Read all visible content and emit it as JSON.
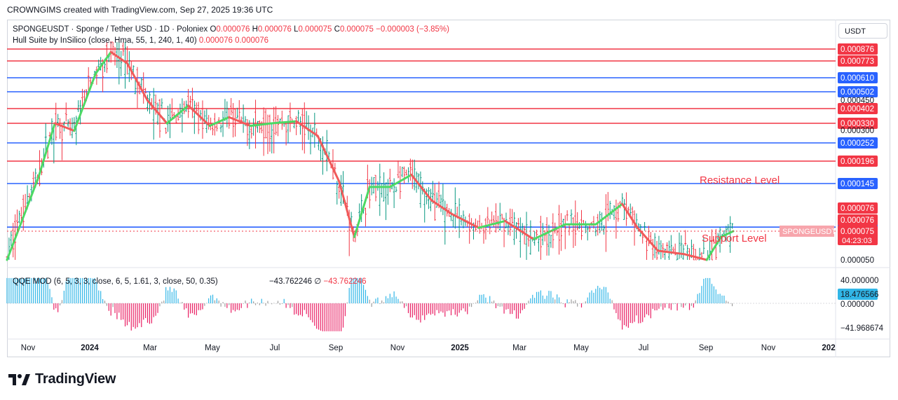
{
  "header": {
    "credit": "CROWNGIMS created with TradingView.com, Sep 27, 2025 19:36 UTC"
  },
  "legend": {
    "symbol": "SPONGEUSDT · Sponge / Tether USD · 1D · Poloniex",
    "o_label": "O",
    "o_value": "0.000076",
    "h_label": "H",
    "h_value": "0.000076",
    "l_label": "L",
    "l_value": "0.000075",
    "c_label": "C",
    "c_value": "0.000075",
    "change": "−0.000003 (−3.85%)",
    "hull_label": "Hull Suite by InSilico (close, Hma, 55, 1, 240, 1, 40)",
    "hull_v1": "0.000076",
    "hull_v2": "0.000076",
    "qqe_label": "QQE MOD (6, 5, 3, 3, close, 6, 5, 1.61, 3, close, 50, 0.35)",
    "qqe_v1": "−43.762246",
    "qqe_sym": "∅",
    "qqe_v2": "−43.762246"
  },
  "currency": "USDT",
  "brand": "TradingView",
  "colors": {
    "red": "#f23645",
    "blue": "#2962ff",
    "hull_up": "#4cd964",
    "hull_down": "#f05a5a",
    "qqe_pos": "#31b6e7",
    "qqe_neg": "#e91e63",
    "qqe_neutral": "#9e9e9e"
  },
  "chart_data": {
    "type": "line",
    "title": "SPONGEUSDT · Sponge / Tether USD · 1D · Poloniex",
    "x_ticks": [
      "Nov",
      "2024",
      "Mar",
      "May",
      "Jul",
      "Sep",
      "Nov",
      "2025",
      "Mar",
      "May",
      "Jul",
      "Sep",
      "Nov",
      "202"
    ],
    "y_ticks": [
      "0.000450",
      "0.000300",
      "0.000050"
    ],
    "horizontal_levels": [
      {
        "value": "0.000876",
        "color": "red"
      },
      {
        "value": "0.000773",
        "color": "red"
      },
      {
        "value": "0.000610",
        "color": "blue"
      },
      {
        "value": "0.000502",
        "color": "blue"
      },
      {
        "value": "0.000402",
        "color": "red"
      },
      {
        "value": "0.000330",
        "color": "red"
      },
      {
        "value": "0.000252",
        "color": "blue"
      },
      {
        "value": "0.000196",
        "color": "red"
      },
      {
        "value": "0.000145",
        "color": "blue"
      },
      {
        "value": "0.000081",
        "color": "blue"
      }
    ],
    "price_tags": [
      {
        "value": "0.000076",
        "color": "red"
      },
      {
        "value": "0.000076",
        "color": "red"
      }
    ],
    "last_price": {
      "label": "SPONGEUSDT",
      "value": "0.000075",
      "countdown": "04:23:03"
    },
    "annotations": [
      "Resistance Level",
      "Support Level"
    ],
    "hull_series": {
      "x": [
        "2023-10-15",
        "2023-11-15",
        "2023-12-01",
        "2023-12-20",
        "2024-01-10",
        "2024-01-25",
        "2024-02-10",
        "2024-03-01",
        "2024-03-20",
        "2024-04-10",
        "2024-05-01",
        "2024-05-20",
        "2024-06-10",
        "2024-07-01",
        "2024-07-25",
        "2024-08-15",
        "2024-09-05",
        "2024-09-20",
        "2024-10-05",
        "2024-10-25",
        "2024-11-15",
        "2024-12-05",
        "2024-12-25",
        "2025-01-20",
        "2025-02-15",
        "2025-03-15",
        "2025-04-15",
        "2025-05-15",
        "2025-06-10",
        "2025-06-25",
        "2025-07-15",
        "2025-08-10",
        "2025-09-01",
        "2025-09-15",
        "2025-09-27"
      ],
      "y": [
        5e-05,
        0.00016,
        0.00033,
        0.0003,
        0.00065,
        0.00085,
        0.00075,
        0.00045,
        0.00033,
        0.00042,
        0.00032,
        0.00036,
        0.00032,
        0.00033,
        0.00034,
        0.00028,
        0.00015,
        7e-05,
        0.00014,
        0.00014,
        0.000165,
        0.00012,
        0.0001,
        8e-05,
        9e-05,
        6.8e-05,
        8.5e-05,
        8.5e-05,
        0.000115,
        8e-05,
        5.8e-05,
        5.5e-05,
        5e-05,
        7e-05,
        7.5e-05
      ]
    },
    "qqe": {
      "y_ticks": [
        "40.000000",
        "18.476566",
        "0.000000",
        "−41.968674"
      ],
      "last": -43.762246
    }
  }
}
